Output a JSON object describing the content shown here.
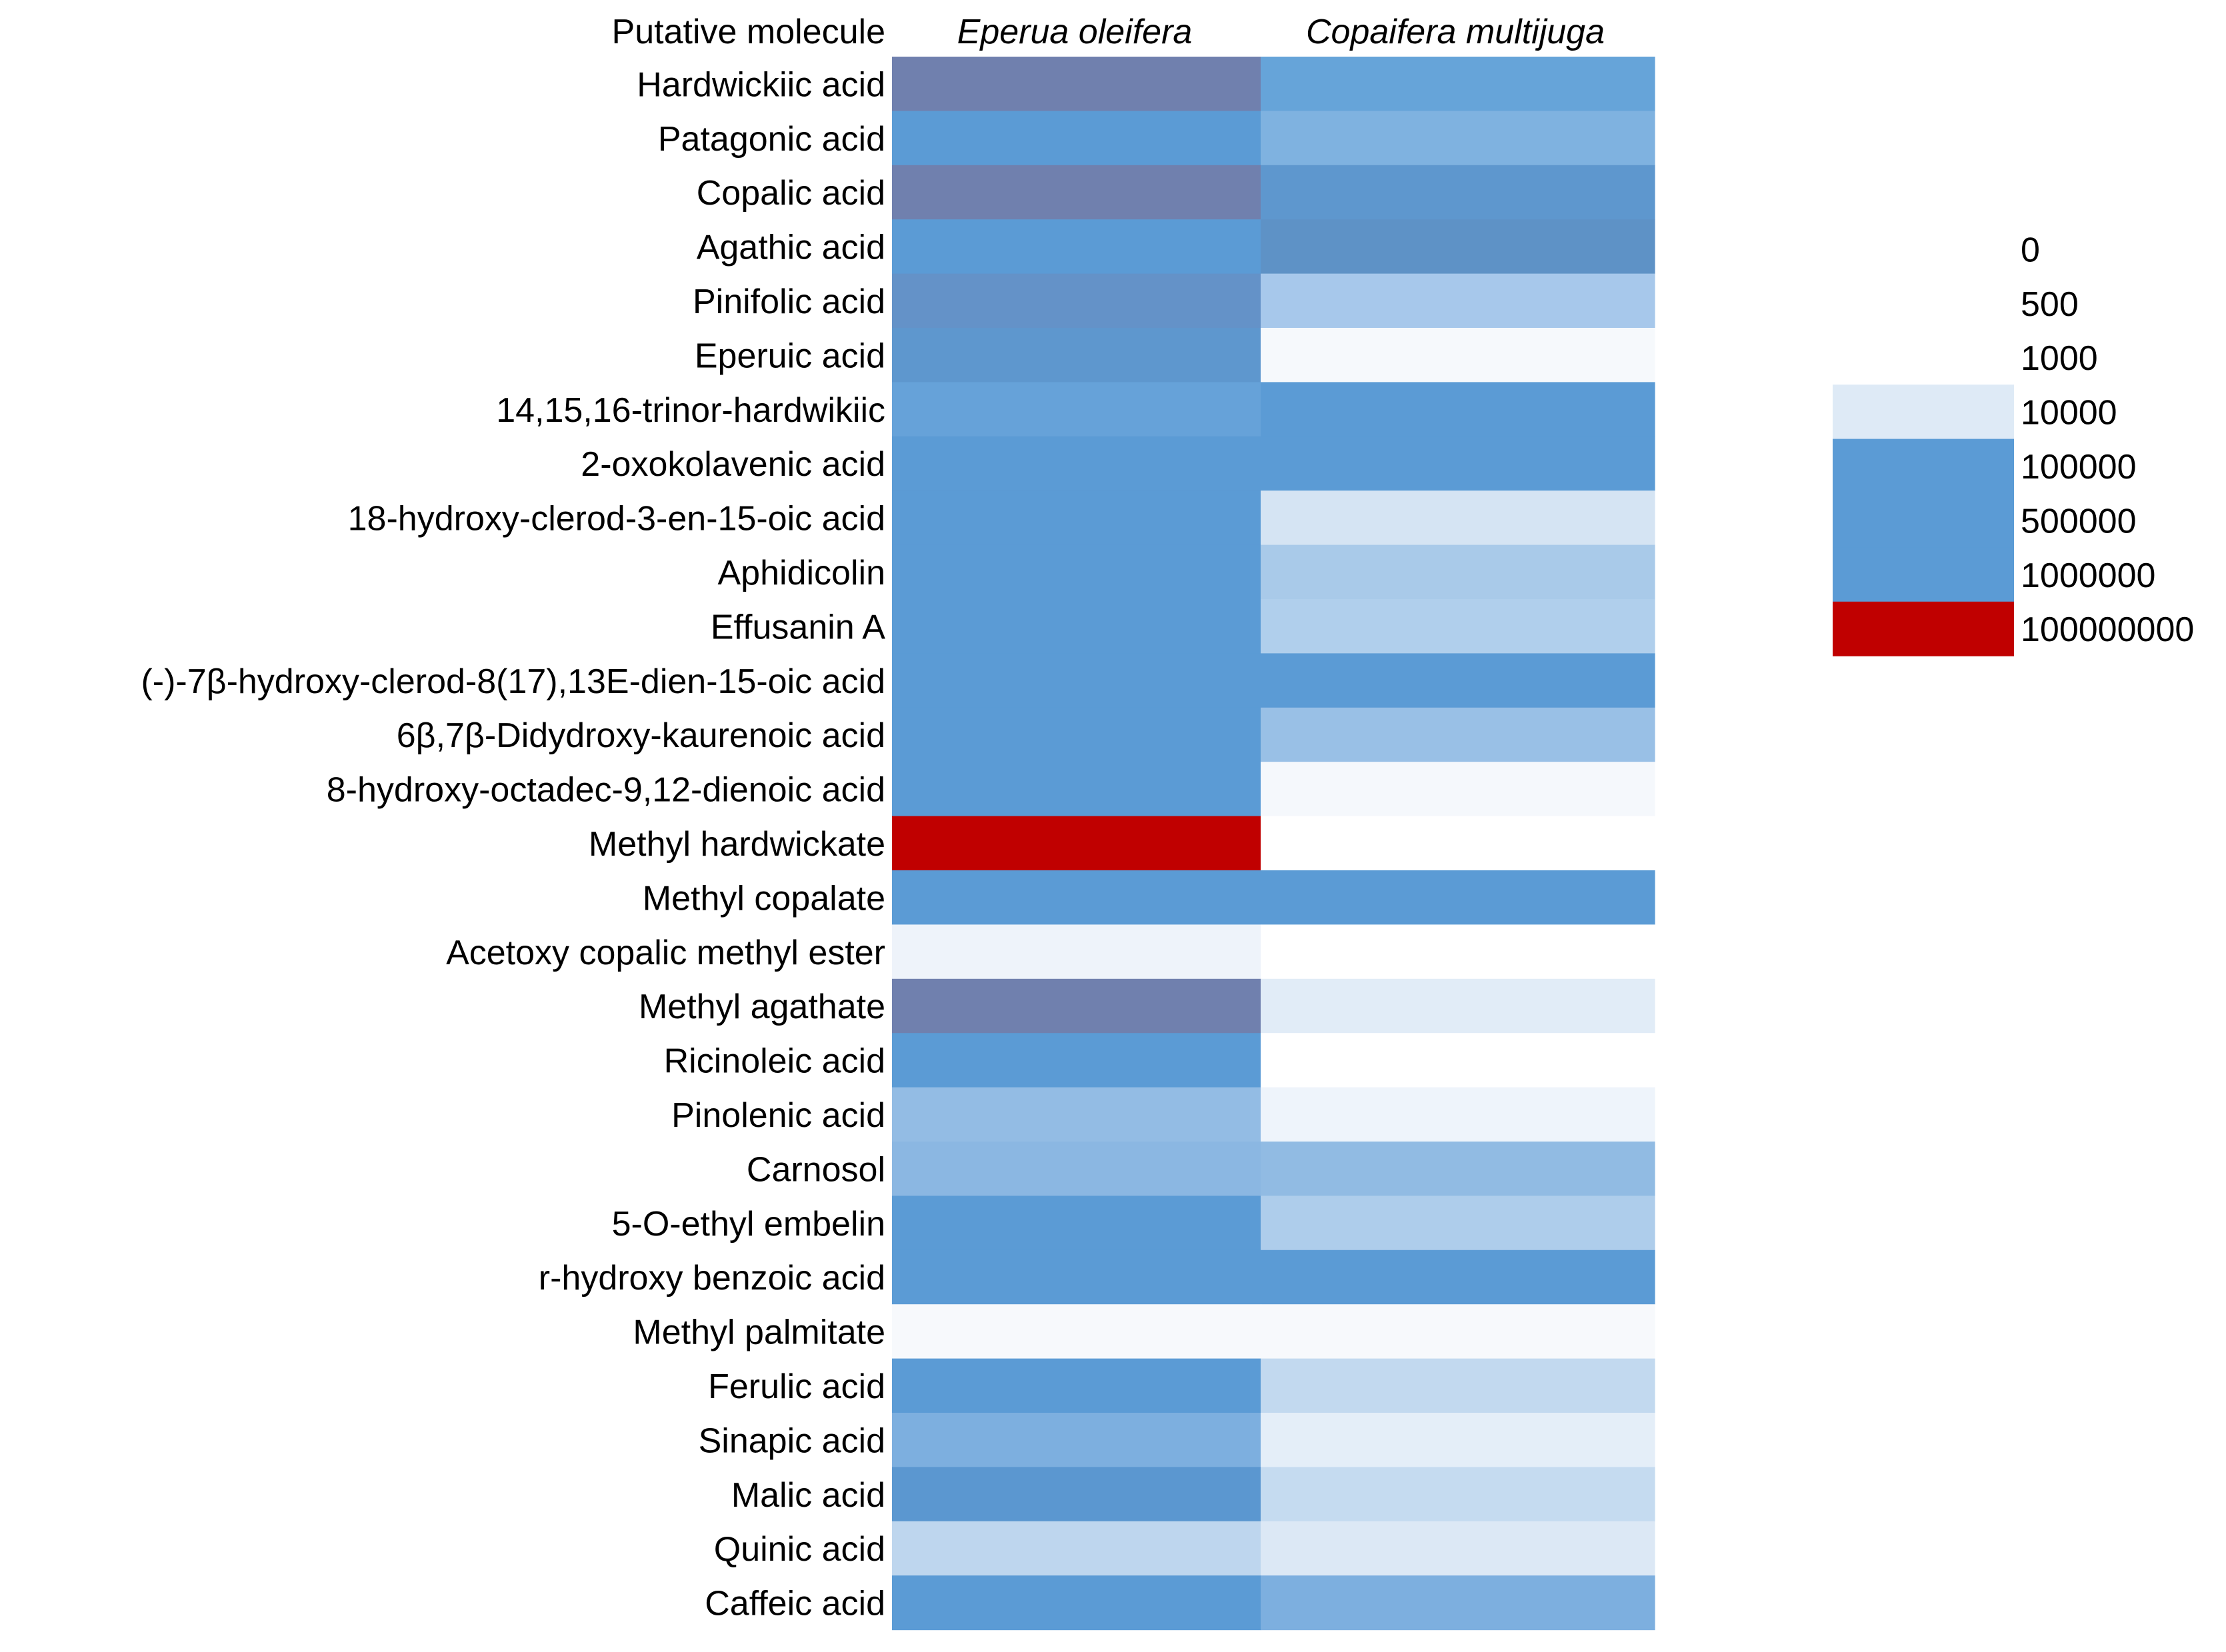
{
  "chart_data": {
    "type": "heatmap",
    "header_label": "Putative molecule",
    "columns": [
      "Eperua oleifera",
      "Copaifera multijuga"
    ],
    "rows": [
      {
        "label": "Hardwickiic acid",
        "colors": [
          "#7080AE",
          "#66A4D9"
        ]
      },
      {
        "label": "Patagonic acid",
        "colors": [
          "#5B9BD5",
          "#7FB2E0"
        ]
      },
      {
        "label": "Copalic acid",
        "colors": [
          "#7080AE",
          "#5E97CE"
        ]
      },
      {
        "label": "Agathic acid",
        "colors": [
          "#5B9BD5",
          "#5E92C6"
        ]
      },
      {
        "label": "Pinifolic acid",
        "colors": [
          "#6492C8",
          "#A7C8EB"
        ]
      },
      {
        "label": "Eperuic acid",
        "colors": [
          "#5E97CE",
          "#F6F9FC"
        ]
      },
      {
        "label": "14,15,16-trinor-hardwikiic",
        "colors": [
          "#66A2D9",
          "#5B9BD5"
        ]
      },
      {
        "label": "2-oxokolavenic acid",
        "colors": [
          "#5B9BD5",
          "#5B9BD5"
        ]
      },
      {
        "label": "18-hydroxy-clerod-3-en-15-oic acid",
        "colors": [
          "#5B9BD5",
          "#D5E4F3"
        ]
      },
      {
        "label": "Aphidicolin",
        "colors": [
          "#5B9BD5",
          "#A9CAE9"
        ]
      },
      {
        "label": "Effusanin A",
        "colors": [
          "#5B9BD5",
          "#B0CFEC"
        ]
      },
      {
        "label": "(-)-7β-hydroxy-clerod-8(17),13E-dien-15-oic acid",
        "colors": [
          "#5B9BD5",
          "#5B9BD5"
        ]
      },
      {
        "label": "6β,7β-Didydroxy-kaurenoic acid",
        "colors": [
          "#5B9BD5",
          "#99C0E6"
        ]
      },
      {
        "label": "8-hydroxy-octadec-9,12-dienoic acid",
        "colors": [
          "#5B9BD5",
          "#F5F8FC"
        ]
      },
      {
        "label": "Methyl hardwickate",
        "colors": [
          "#C00000",
          "#FFFFFF"
        ]
      },
      {
        "label": "Methyl copalate",
        "colors": [
          "#5B9BD5",
          "#5B9BD5"
        ]
      },
      {
        "label": "Acetoxy copalic methyl ester",
        "colors": [
          "#EEF3FA",
          "#FFFFFF"
        ]
      },
      {
        "label": "Methyl agathate",
        "colors": [
          "#7080AE",
          "#E1ECF7"
        ]
      },
      {
        "label": "Ricinoleic acid",
        "colors": [
          "#5B9BD5",
          "#FFFFFF"
        ]
      },
      {
        "label": "Pinolenic acid",
        "colors": [
          "#93BCE4",
          "#EEF4FB"
        ]
      },
      {
        "label": "Carnosol",
        "colors": [
          "#8BB7E2",
          "#91BBE3"
        ]
      },
      {
        "label": "5-O-ethyl embelin",
        "colors": [
          "#5B9BD5",
          "#AECDEB"
        ]
      },
      {
        "label": "r-hydroxy benzoic acid",
        "colors": [
          "#5B9BD5",
          "#5B9BD5"
        ]
      },
      {
        "label": "Methyl palmitate",
        "colors": [
          "#F7F9FC",
          "#F7F9FC"
        ]
      },
      {
        "label": "Ferulic acid",
        "colors": [
          "#5B9BD5",
          "#C2D9EF"
        ]
      },
      {
        "label": "Sinapic acid",
        "colors": [
          "#7DAFDF",
          "#E4EEF8"
        ]
      },
      {
        "label": "Malic acid",
        "colors": [
          "#5B97D0",
          "#C5DBF0"
        ]
      },
      {
        "label": "Quinic acid",
        "colors": [
          "#BED6EE",
          "#DCE8F5"
        ]
      },
      {
        "label": "Caffeic acid",
        "colors": [
          "#5B9BD5",
          "#7DAFDF"
        ]
      }
    ],
    "legend": [
      {
        "label": "0",
        "color": "#FFFFFF"
      },
      {
        "label": "500",
        "color": "#FFFFFF"
      },
      {
        "label": "1000",
        "color": "#FFFFFF"
      },
      {
        "label": "10000",
        "color": "#DEEAF6"
      },
      {
        "label": "100000",
        "color": "#5B9BD5"
      },
      {
        "label": "500000",
        "color": "#5B9BD5"
      },
      {
        "label": "1000000",
        "color": "#5B9BD5"
      },
      {
        "label": "100000000",
        "color": "#C00000"
      }
    ]
  }
}
